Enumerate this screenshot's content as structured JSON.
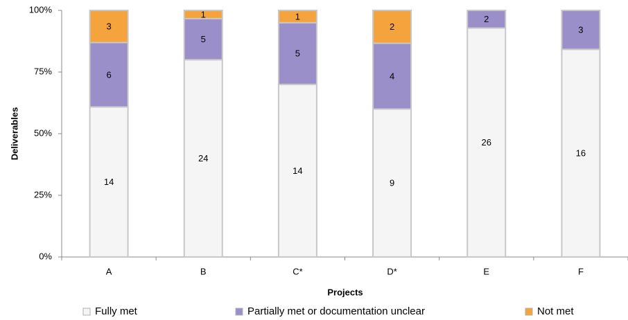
{
  "chart_data": {
    "type": "bar",
    "stack": "percent",
    "categories": [
      "A",
      "B",
      "C*",
      "D*",
      "E",
      "F"
    ],
    "series": [
      {
        "name": "Fully met",
        "color": "#f5f5f5",
        "values": [
          14,
          24,
          14,
          9,
          26,
          16
        ]
      },
      {
        "name": "Partially met or documentation unclear",
        "color": "#9b8fca",
        "values": [
          6,
          5,
          5,
          4,
          2,
          3
        ]
      },
      {
        "name": "Not met",
        "color": "#f5a33d",
        "values": [
          3,
          1,
          1,
          2,
          0,
          0
        ]
      }
    ],
    "ylim": [
      0,
      100
    ],
    "yticks": [
      {
        "value": 0,
        "label": "0%"
      },
      {
        "value": 25,
        "label": "25%"
      },
      {
        "value": 50,
        "label": "50%"
      },
      {
        "value": 75,
        "label": "75%"
      },
      {
        "value": 100,
        "label": "100%"
      }
    ],
    "xlabel": "Projects",
    "ylabel": "Deliverables",
    "legend": "bottom"
  }
}
